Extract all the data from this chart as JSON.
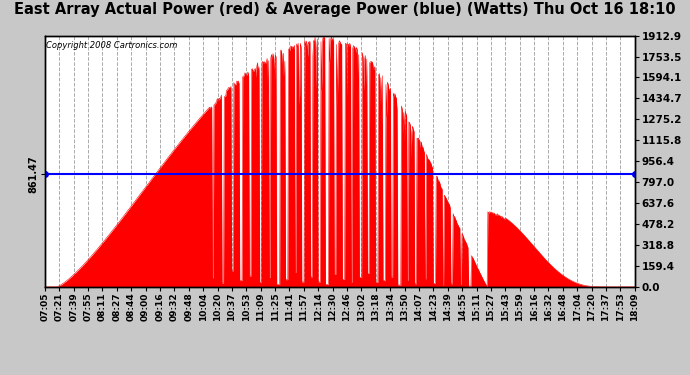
{
  "title": "East Array Actual Power (red) & Average Power (blue) (Watts) Thu Oct 16 18:10",
  "copyright": "Copyright 2008 Cartronics.com",
  "average_power": 861.47,
  "ymax": 1912.9,
  "ymin": 0.0,
  "yticks": [
    0.0,
    159.4,
    318.8,
    478.2,
    637.6,
    797.0,
    956.4,
    1115.8,
    1275.2,
    1434.7,
    1594.1,
    1753.5,
    1912.9
  ],
  "ytick_labels": [
    "0.0",
    "159.4",
    "318.8",
    "478.2",
    "637.6",
    "797.0",
    "956.4",
    "1115.8",
    "1275.2",
    "1434.7",
    "1594.1",
    "1753.5",
    "1912.9"
  ],
  "fill_color": "red",
  "line_color": "blue",
  "outer_bg_color": "#c8c8c8",
  "plot_bg_color": "#ffffff",
  "grid_color": "#aaaaaa",
  "title_fontsize": 11,
  "xtick_labels": [
    "07:05",
    "07:21",
    "07:39",
    "07:55",
    "08:11",
    "08:27",
    "08:44",
    "09:00",
    "09:16",
    "09:32",
    "09:48",
    "10:04",
    "10:20",
    "10:37",
    "10:53",
    "11:09",
    "11:25",
    "11:41",
    "11:57",
    "12:14",
    "12:30",
    "12:46",
    "13:02",
    "13:18",
    "13:34",
    "13:50",
    "14:07",
    "14:23",
    "14:39",
    "14:55",
    "15:11",
    "15:27",
    "15:43",
    "15:59",
    "16:16",
    "16:32",
    "16:48",
    "17:04",
    "17:20",
    "17:37",
    "17:53",
    "18:09"
  ],
  "dropout_positions": [
    0.285,
    0.302,
    0.318,
    0.332,
    0.348,
    0.365,
    0.381,
    0.395,
    0.41,
    0.425,
    0.438,
    0.452,
    0.465,
    0.478,
    0.492,
    0.506,
    0.52,
    0.535,
    0.548,
    0.562,
    0.575,
    0.588,
    0.601,
    0.615,
    0.628,
    0.645,
    0.66,
    0.675,
    0.69,
    0.705,
    0.72
  ],
  "dropout_widths": [
    0.003,
    0.004,
    0.003,
    0.005,
    0.003,
    0.004,
    0.003,
    0.006,
    0.004,
    0.003,
    0.005,
    0.003,
    0.004,
    0.006,
    0.003,
    0.005,
    0.003,
    0.004,
    0.003,
    0.005,
    0.004,
    0.003,
    0.006,
    0.003,
    0.004,
    0.003,
    0.005,
    0.003,
    0.004,
    0.003,
    0.005
  ],
  "dropout_depths": [
    0.05,
    0.02,
    0.08,
    0.03,
    0.05,
    0.02,
    0.04,
    0.01,
    0.03,
    0.06,
    0.02,
    0.04,
    0.02,
    0.01,
    0.05,
    0.03,
    0.02,
    0.04,
    0.06,
    0.02,
    0.03,
    0.05,
    0.01,
    0.04,
    0.02,
    0.06,
    0.03,
    0.02,
    0.04,
    0.05,
    0.02
  ]
}
